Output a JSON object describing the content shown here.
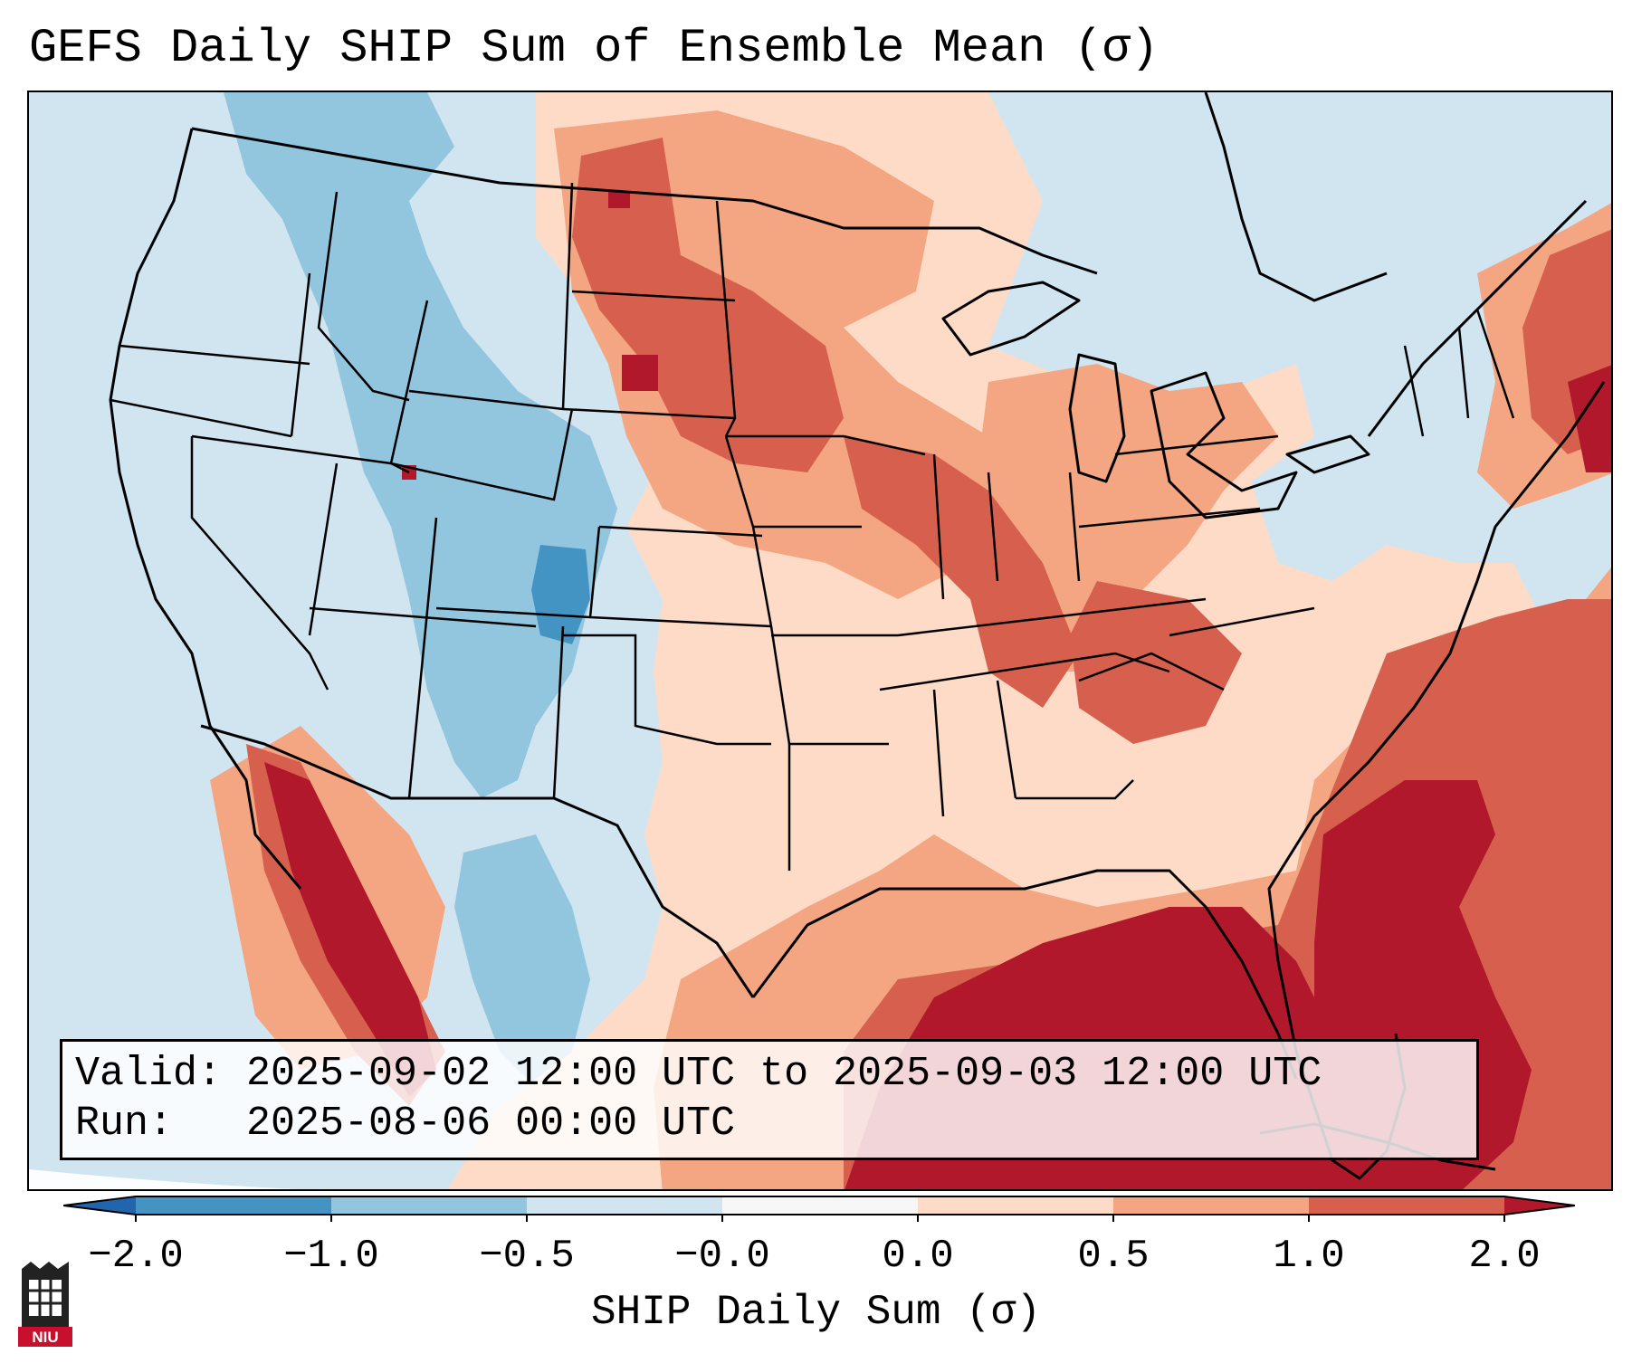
{
  "title": "GEFS Daily SHIP Sum of Ensemble Mean (σ)",
  "valid_line": "Valid: 2025-09-02 12:00 UTC to 2025-09-03 12:00 UTC",
  "run_line": "Run:   2025-08-06 00:00 UTC",
  "colorbar": {
    "label": "SHIP Daily Sum (σ)",
    "ticks": [
      "−2.0",
      "−1.0",
      "−0.5",
      "−0.0",
      "0.0",
      "0.5",
      "1.0",
      "2.0"
    ],
    "bins": [
      {
        "color": "#2166ac",
        "range": "< -2.0"
      },
      {
        "color": "#4393c3",
        "range": "-2.0 to -1.0"
      },
      {
        "color": "#92c5de",
        "range": "-1.0 to -0.5"
      },
      {
        "color": "#d1e5f0",
        "range": "-0.5 to -0.0"
      },
      {
        "color": "#f7f7f7",
        "range": "-0.0 to 0.0"
      },
      {
        "color": "#fddbc7",
        "range": "0.0 to 0.5"
      },
      {
        "color": "#f4a582",
        "range": "0.5 to 1.0"
      },
      {
        "color": "#d6604d",
        "range": "1.0 to 2.0"
      },
      {
        "color": "#b2182b",
        "range": "> 2.0"
      }
    ]
  },
  "logo": {
    "text": "NIU",
    "color": "#c8102e"
  }
}
